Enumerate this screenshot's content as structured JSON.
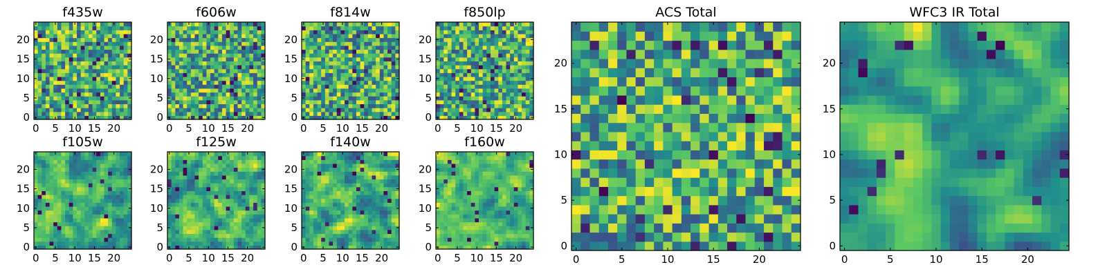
{
  "figure": {
    "colormap": [
      "#440154",
      "#3b528b",
      "#21918c",
      "#5ec962",
      "#fde725"
    ]
  },
  "chart_data": [
    {
      "type": "heatmap",
      "title": "f435w",
      "grid": [
        25,
        25
      ],
      "seed": 11,
      "smooth": 0,
      "xticks": [
        0,
        5,
        10,
        15,
        20
      ],
      "yticks": [
        0,
        5,
        10,
        15,
        20
      ],
      "xlim": [
        0,
        25
      ],
      "ylim": [
        0,
        25
      ]
    },
    {
      "type": "heatmap",
      "title": "f606w",
      "grid": [
        25,
        25
      ],
      "seed": 23,
      "smooth": 0,
      "xticks": [
        0,
        5,
        10,
        15,
        20
      ],
      "yticks": [
        0,
        5,
        10,
        15,
        20
      ],
      "xlim": [
        0,
        25
      ],
      "ylim": [
        0,
        25
      ]
    },
    {
      "type": "heatmap",
      "title": "f814w",
      "grid": [
        25,
        25
      ],
      "seed": 37,
      "smooth": 0,
      "xticks": [
        0,
        5,
        10,
        15,
        20
      ],
      "yticks": [
        0,
        5,
        10,
        15,
        20
      ],
      "xlim": [
        0,
        25
      ],
      "ylim": [
        0,
        25
      ]
    },
    {
      "type": "heatmap",
      "title": "f850lp",
      "grid": [
        25,
        25
      ],
      "seed": 41,
      "smooth": 0,
      "xticks": [
        0,
        5,
        10,
        15,
        20
      ],
      "yticks": [
        0,
        5,
        10,
        15,
        20
      ],
      "xlim": [
        0,
        25
      ],
      "ylim": [
        0,
        25
      ]
    },
    {
      "type": "heatmap",
      "title": "f105w",
      "grid": [
        25,
        25
      ],
      "seed": 53,
      "smooth": 1,
      "xticks": [
        0,
        5,
        10,
        15,
        20
      ],
      "yticks": [
        0,
        5,
        10,
        15,
        20
      ],
      "xlim": [
        0,
        25
      ],
      "ylim": [
        0,
        25
      ]
    },
    {
      "type": "heatmap",
      "title": "f125w",
      "grid": [
        25,
        25
      ],
      "seed": 67,
      "smooth": 1,
      "xticks": [
        0,
        5,
        10,
        15,
        20
      ],
      "yticks": [
        0,
        5,
        10,
        15,
        20
      ],
      "xlim": [
        0,
        25
      ],
      "ylim": [
        0,
        25
      ]
    },
    {
      "type": "heatmap",
      "title": "f140w",
      "grid": [
        25,
        25
      ],
      "seed": 71,
      "smooth": 1,
      "xticks": [
        0,
        5,
        10,
        15,
        20
      ],
      "yticks": [
        0,
        5,
        10,
        15,
        20
      ],
      "xlim": [
        0,
        25
      ],
      "ylim": [
        0,
        25
      ]
    },
    {
      "type": "heatmap",
      "title": "f160w",
      "grid": [
        25,
        25
      ],
      "seed": 83,
      "smooth": 1,
      "xticks": [
        0,
        5,
        10,
        15,
        20
      ],
      "yticks": [
        0,
        5,
        10,
        15,
        20
      ],
      "xlim": [
        0,
        25
      ],
      "ylim": [
        0,
        25
      ]
    },
    {
      "type": "heatmap",
      "title": "ACS Total",
      "grid": [
        25,
        25
      ],
      "seed": 97,
      "smooth": 0,
      "xticks": [
        0,
        5,
        10,
        15,
        20
      ],
      "yticks": [
        0,
        5,
        10,
        15,
        20
      ],
      "xlim": [
        0,
        25
      ],
      "ylim": [
        0,
        25
      ]
    },
    {
      "type": "heatmap",
      "title": "WFC3 IR Total",
      "grid": [
        25,
        25
      ],
      "seed": 101,
      "smooth": 2,
      "xticks": [
        0,
        5,
        10,
        15,
        20
      ],
      "yticks": [
        0,
        5,
        10,
        15,
        20
      ],
      "xlim": [
        0,
        25
      ],
      "ylim": [
        0,
        25
      ]
    }
  ]
}
